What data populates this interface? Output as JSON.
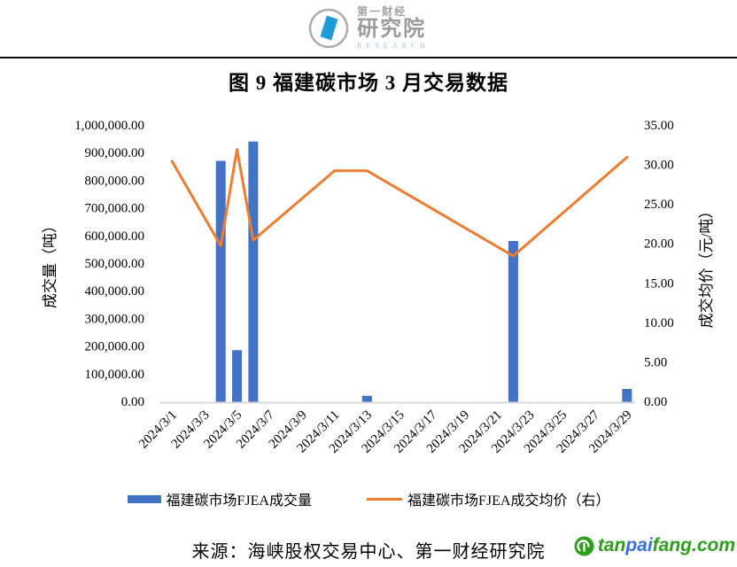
{
  "header": {
    "logo": {
      "brand_top": "第一财经",
      "brand_main": "研究院",
      "brand_sub": "RESEARCH"
    }
  },
  "title": "图 9  福建碳市场 3 月交易数据",
  "chart_data": {
    "type": "bar+line dual-axis combo",
    "title": "图 9 福建碳市场 3 月交易数据",
    "grid": false,
    "legend_position": "bottom",
    "categories": [
      "2024/3/1",
      "2024/3/2",
      "2024/3/3",
      "2024/3/4",
      "2024/3/5",
      "2024/3/6",
      "2024/3/7",
      "2024/3/8",
      "2024/3/9",
      "2024/3/10",
      "2024/3/11",
      "2024/3/12",
      "2024/3/13",
      "2024/3/14",
      "2024/3/15",
      "2024/3/16",
      "2024/3/17",
      "2024/3/18",
      "2024/3/19",
      "2024/3/20",
      "2024/3/21",
      "2024/3/22",
      "2024/3/23",
      "2024/3/24",
      "2024/3/25",
      "2024/3/26",
      "2024/3/27",
      "2024/3/28",
      "2024/3/29"
    ],
    "x_tick_labels": [
      "2024/3/1",
      "2024/3/3",
      "2024/3/5",
      "2024/3/7",
      "2024/3/9",
      "2024/3/11",
      "2024/3/13",
      "2024/3/15",
      "2024/3/17",
      "2024/3/19",
      "2024/3/21",
      "2024/3/23",
      "2024/3/25",
      "2024/3/27",
      "2024/3/29"
    ],
    "left_axis": {
      "label": "成交量（吨）",
      "min": 0,
      "max": 1000000,
      "step": 100000,
      "tick_format": "#,##0.00"
    },
    "right_axis": {
      "label": "成交均价（元/吨）",
      "min": 0,
      "max": 35,
      "step": 5,
      "tick_format": "0.00"
    },
    "series": [
      {
        "name": "福建碳市场FJEA成交量",
        "type": "bar",
        "axis": "left",
        "color": "#4472C4",
        "points": [
          {
            "date": "2024/3/4",
            "value": 870000
          },
          {
            "date": "2024/3/5",
            "value": 185000
          },
          {
            "date": "2024/3/6",
            "value": 940000
          },
          {
            "date": "2024/3/13",
            "value": 20000
          },
          {
            "date": "2024/3/22",
            "value": 580000
          },
          {
            "date": "2024/3/29",
            "value": 45000
          }
        ]
      },
      {
        "name": "福建碳市场FJEA成交均价（右）",
        "type": "line",
        "axis": "right",
        "color": "#ED7D31",
        "points": [
          {
            "date": "2024/3/1",
            "value": 30.4
          },
          {
            "date": "2024/3/4",
            "value": 19.7
          },
          {
            "date": "2024/3/5",
            "value": 31.9
          },
          {
            "date": "2024/3/6",
            "value": 20.4
          },
          {
            "date": "2024/3/11",
            "value": 29.2
          },
          {
            "date": "2024/3/13",
            "value": 29.2
          },
          {
            "date": "2024/3/22",
            "value": 18.4
          },
          {
            "date": "2024/3/29",
            "value": 30.9
          }
        ]
      }
    ]
  },
  "footer": {
    "source": "来源：海峡股权交易中心、第一财经研究院",
    "brand": {
      "icon": "tanpaifang-recycle-icon",
      "parts": [
        {
          "text": "tan",
          "color": "#2f9e1f"
        },
        {
          "text": "pai",
          "color": "#3c6edc"
        },
        {
          "text": "fang.com",
          "color": "#2f9e1f"
        }
      ]
    }
  },
  "colors": {
    "bar": "#4472C4",
    "line": "#ED7D31",
    "axis_line": "#d9d9d9",
    "divider": "#0a0a0a"
  }
}
